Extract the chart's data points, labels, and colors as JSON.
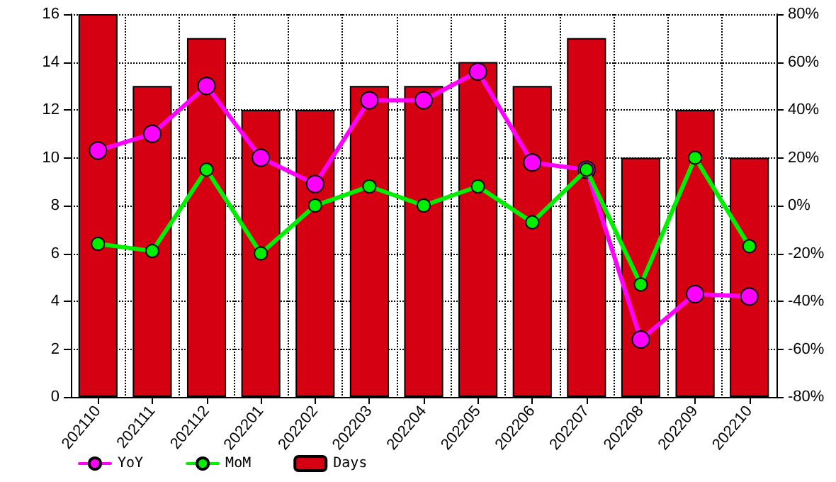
{
  "chart_data": {
    "type": "bar",
    "categories": [
      "202110",
      "202111",
      "202112",
      "202201",
      "202202",
      "202203",
      "202204",
      "202205",
      "202206",
      "202207",
      "202208",
      "202209",
      "202210"
    ],
    "series": [
      {
        "name": "YoY",
        "type": "line",
        "axis": "y2",
        "color": "#ff00ff",
        "values": [
          23,
          30,
          50,
          20,
          9,
          44,
          44,
          56,
          18,
          15,
          -56,
          -37,
          -38
        ]
      },
      {
        "name": "MoM",
        "type": "line",
        "axis": "y2",
        "color": "#00ee00",
        "values": [
          -16,
          -19,
          15,
          -20,
          0,
          8,
          0,
          8,
          -7,
          15,
          -33,
          20,
          -17
        ]
      },
      {
        "name": "Days",
        "color": "#d50012",
        "values": [
          16,
          13,
          15,
          12,
          12,
          13,
          13,
          14,
          13,
          15,
          10,
          12,
          10
        ]
      }
    ],
    "ylim": [
      0,
      16
    ],
    "yticks": [
      0,
      2,
      4,
      6,
      8,
      10,
      12,
      14,
      16
    ],
    "y2lim": [
      -80,
      80
    ],
    "y2ticks": [
      {
        "value": -80,
        "label": "-80%"
      },
      {
        "value": -60,
        "label": "-60%"
      },
      {
        "value": -40,
        "label": "-40%"
      },
      {
        "value": -20,
        "label": "-20%"
      },
      {
        "value": 0,
        "label": "0%"
      },
      {
        "value": 20,
        "label": "20%"
      },
      {
        "value": 40,
        "label": "40%"
      },
      {
        "value": 60,
        "label": "60%"
      },
      {
        "value": 80,
        "label": "80%"
      }
    ],
    "grid": true,
    "legend": "bottom left",
    "marker": "circle",
    "line_style": "solid"
  }
}
